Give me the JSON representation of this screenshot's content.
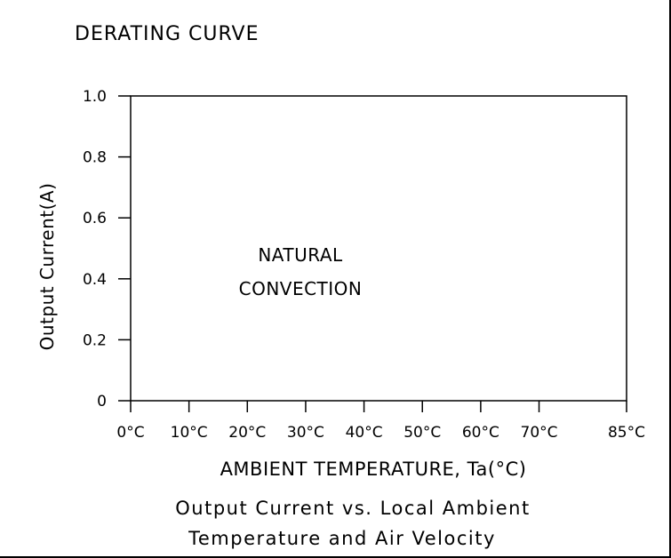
{
  "chart_data": {
    "type": "line",
    "title": "DERATING CURVE",
    "xlabel": "AMBIENT TEMPERATURE, Ta(°C)",
    "ylabel": "Output Current(A)",
    "x_ticks": [
      0,
      10,
      20,
      30,
      40,
      50,
      60,
      70,
      85
    ],
    "x_tick_labels": [
      "0°C",
      "10°C",
      "20°C",
      "30°C",
      "40°C",
      "50°C",
      "60°C",
      "70°C",
      "85°C"
    ],
    "y_ticks": [
      0,
      0.2,
      0.4,
      0.6,
      0.8,
      1.0
    ],
    "y_tick_labels": [
      "0",
      "0.2",
      "0.4",
      "0.6",
      "0.8",
      "1.0"
    ],
    "xlim": [
      0,
      85
    ],
    "ylim": [
      0,
      1.0
    ],
    "grid": false,
    "series": [],
    "annotation": [
      "NATURAL",
      "CONVECTION"
    ],
    "caption": [
      "Output Current vs. Local Ambient",
      "Temperature and Air Velocity"
    ]
  }
}
